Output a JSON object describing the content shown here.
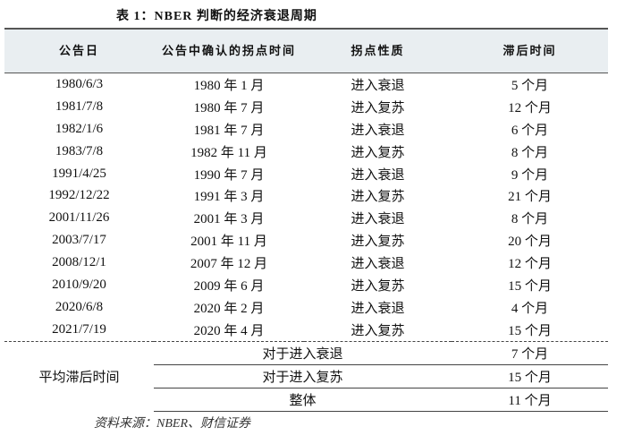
{
  "title": "表 1：NBER 判断的经济衰退周期",
  "table": {
    "header": [
      "公告日",
      "公告中确认的拐点时间",
      "拐点性质",
      "滞后时间"
    ],
    "rows": [
      [
        "1980/6/3",
        "1980 年 1 月",
        "进入衰退",
        "5 个月"
      ],
      [
        "1981/7/8",
        "1980 年 7 月",
        "进入复苏",
        "12 个月"
      ],
      [
        "1982/1/6",
        "1981 年 7 月",
        "进入衰退",
        "6 个月"
      ],
      [
        "1983/7/8",
        "1982 年 11 月",
        "进入复苏",
        "8 个月"
      ],
      [
        "1991/4/25",
        "1990 年 7 月",
        "进入衰退",
        "9 个月"
      ],
      [
        "1992/12/22",
        "1991 年 3 月",
        "进入复苏",
        "21 个月"
      ],
      [
        "2001/11/26",
        "2001 年 3 月",
        "进入衰退",
        "8 个月"
      ],
      [
        "2003/7/17",
        "2001 年 11 月",
        "进入复苏",
        "20 个月"
      ],
      [
        "2008/12/1",
        "2007 年 12 月",
        "进入衰退",
        "12 个月"
      ],
      [
        "2010/9/20",
        "2009 年 6 月",
        "进入复苏",
        "15 个月"
      ],
      [
        "2020/6/8",
        "2020 年 2 月",
        "进入衰退",
        "4 个月"
      ],
      [
        "2021/7/19",
        "2020 年 4 月",
        "进入复苏",
        "15 个月"
      ]
    ],
    "summary_label": "平均滞后时间",
    "summary": [
      [
        "对于进入衰退",
        "7 个月"
      ],
      [
        "对于进入复苏",
        "15 个月"
      ],
      [
        "整体",
        "11 个月"
      ]
    ]
  },
  "source": "资料来源：NBER、财信证券"
}
